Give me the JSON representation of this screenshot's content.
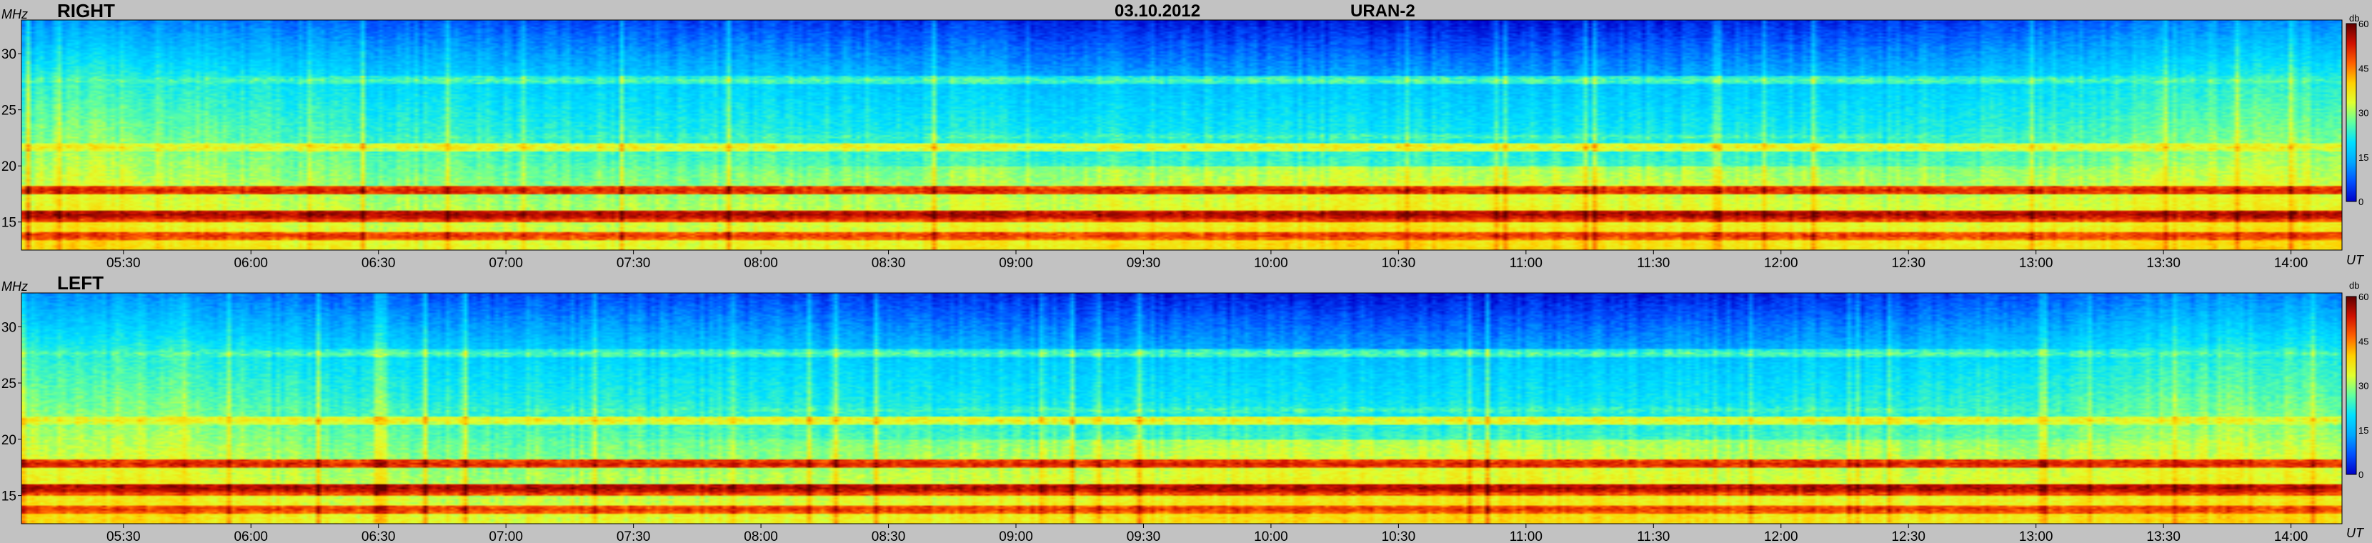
{
  "chart_data": {
    "type": "heatmap",
    "header": {
      "date": "03.10.2012",
      "instrument": "URAN-2"
    },
    "panels": [
      {
        "label": "RIGHT",
        "y_unit": "MHz",
        "x_unit": "UT",
        "colorbar_unit": "db"
      },
      {
        "label": "LEFT",
        "y_unit": "MHz",
        "x_unit": "UT",
        "colorbar_unit": "db"
      }
    ],
    "x_range_hours": [
      5.1,
      14.2
    ],
    "x_ticks": [
      "05:30",
      "06:00",
      "06:30",
      "07:00",
      "07:30",
      "08:00",
      "08:30",
      "09:00",
      "09:30",
      "10:00",
      "10:30",
      "11:00",
      "11:30",
      "12:00",
      "12:30",
      "13:00",
      "13:30",
      "14:00"
    ],
    "x_tick_hours": [
      5.5,
      6.0,
      6.5,
      7.0,
      7.5,
      8.0,
      8.5,
      9.0,
      9.5,
      10.0,
      10.5,
      11.0,
      11.5,
      12.0,
      12.5,
      13.0,
      13.5,
      14.0
    ],
    "y_range_mhz": [
      12.5,
      33
    ],
    "y_ticks": [
      "15",
      "20",
      "25",
      "30"
    ],
    "y_tick_values": [
      15,
      20,
      25,
      30
    ],
    "colorbar_ticks": [
      "60",
      "45",
      "30",
      "15",
      "0"
    ],
    "colorbar_values": [
      60,
      45,
      30,
      15,
      0
    ],
    "colorbar_range_db": [
      0,
      60
    ],
    "colormap": [
      "#0000c8",
      "#0050ff",
      "#00a8ff",
      "#00e0ff",
      "#60ffa0",
      "#e0ff30",
      "#ffd000",
      "#ff6000",
      "#d01000",
      "#600000"
    ],
    "background_color": "#c2c2c2",
    "interference_bands_mhz": [
      {
        "freq": 17.8,
        "db": 52
      },
      {
        "freq": 15.7,
        "db": 56
      },
      {
        "freq": 15.3,
        "db": 50
      },
      {
        "freq": 13.8,
        "db": 50
      },
      {
        "freq": 21.7,
        "db": 36
      },
      {
        "freq": 27.6,
        "db": 26
      },
      {
        "freq": 22.6,
        "db": 25
      }
    ]
  }
}
